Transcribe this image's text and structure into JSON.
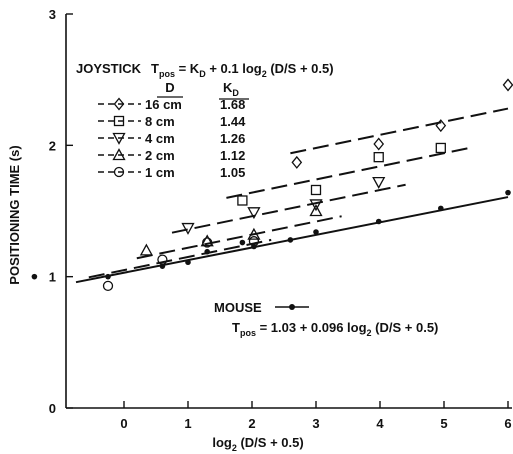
{
  "chart_data": {
    "type": "scatter",
    "xlabel": "log₂ (D/S + 0.5)",
    "ylabel": "POSITIONING TIME (s)",
    "xlim": [
      -1.5,
      6
    ],
    "ylim": [
      0,
      3
    ],
    "x_ticks": [
      "0",
      "1",
      "2",
      "3",
      "4",
      "5",
      "6"
    ],
    "y_ticks": [
      "0",
      "1",
      "2",
      "3"
    ],
    "joystick": {
      "equation": "JOYSTICK  Tpos = KD + 0.1 log₂ (D/S + 0.5)",
      "equation_parts": {
        "lead": "JOYSTICK",
        "T": "T",
        "T_sub": "pos",
        "mid": " = K",
        "K_sub": "D",
        "tail": " + 0.1 log",
        "log_sub": "2",
        "end": " (D/S + 0.5)"
      },
      "col_D": "D",
      "col_K": "K",
      "col_K_sub": "D",
      "slope": 0.1
    },
    "series": [
      {
        "name": "16 cm",
        "kd": "1.68",
        "marker": "diamond",
        "fit": {
          "intercept": 1.68,
          "x_range": [
            2.6,
            6
          ]
        },
        "points": [
          [
            2.7,
            1.87
          ],
          [
            3.98,
            2.01
          ],
          [
            4.95,
            2.15
          ],
          [
            6.0,
            2.46
          ]
        ]
      },
      {
        "name": "8 cm",
        "kd": "1.44",
        "marker": "square",
        "fit": {
          "intercept": 1.44,
          "x_range": [
            1.6,
            5.4
          ]
        },
        "points": [
          [
            1.85,
            1.58
          ],
          [
            3.0,
            1.66
          ],
          [
            3.98,
            1.91
          ],
          [
            4.95,
            1.98
          ]
        ]
      },
      {
        "name": "4 cm",
        "kd": "1.26",
        "marker": "triangle-down",
        "fit": {
          "intercept": 1.26,
          "x_range": [
            0.75,
            4.4
          ]
        },
        "points": [
          [
            1.0,
            1.37
          ],
          [
            2.03,
            1.49
          ],
          [
            3.0,
            1.55
          ],
          [
            3.98,
            1.72
          ]
        ]
      },
      {
        "name": "2 cm",
        "kd": "1.12",
        "marker": "triangle-up",
        "fit": {
          "intercept": 1.12,
          "x_range": [
            0.2,
            3.4
          ]
        },
        "points": [
          [
            0.35,
            1.2
          ],
          [
            1.3,
            1.27
          ],
          [
            2.03,
            1.32
          ],
          [
            3.0,
            1.5
          ]
        ]
      },
      {
        "name": "1 cm",
        "kd": "1.05",
        "marker": "circle",
        "fit": {
          "intercept": 1.05,
          "x_range": [
            -0.55,
            2.3
          ]
        },
        "points": [
          [
            -0.25,
            0.93
          ],
          [
            0.6,
            1.13
          ],
          [
            1.3,
            1.26
          ],
          [
            2.03,
            1.27
          ]
        ]
      }
    ],
    "mouse": {
      "name": "MOUSE",
      "equation": "Tpos = 1.03 + 0.096 log₂ (D/S + 0.5)",
      "equation_parts": {
        "T": "T",
        "T_sub": "pos",
        "mid": " = 1.03 + 0.096  log",
        "log_sub": "2",
        "end": " (D/S + 0.5)"
      },
      "intercept": 1.03,
      "slope": 0.096,
      "fit_range": [
        -0.75,
        6
      ],
      "points": [
        [
          -1.4,
          1.0
        ],
        [
          -0.25,
          1.0
        ],
        [
          0.6,
          1.08
        ],
        [
          1.0,
          1.11
        ],
        [
          1.3,
          1.19
        ],
        [
          1.85,
          1.26
        ],
        [
          2.03,
          1.23
        ],
        [
          2.6,
          1.28
        ],
        [
          3.0,
          1.34
        ],
        [
          3.98,
          1.42
        ],
        [
          4.95,
          1.52
        ],
        [
          6.0,
          1.64
        ]
      ]
    }
  }
}
